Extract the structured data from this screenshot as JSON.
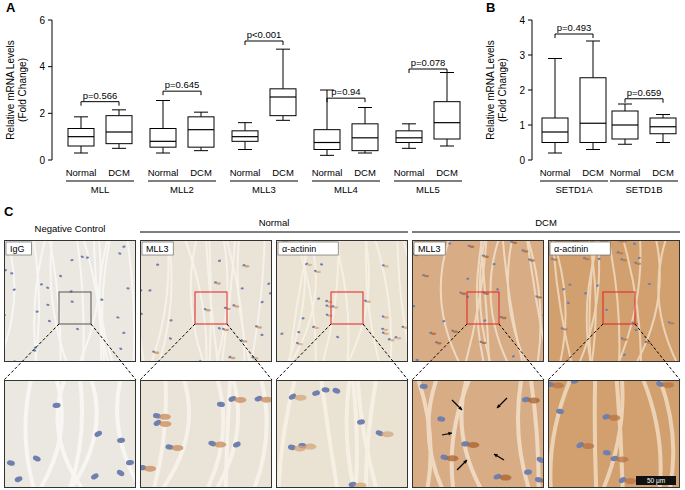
{
  "chart_data": [
    {
      "type": "box",
      "panel_label": "A",
      "y_label_lines": [
        "Relative mRNA Levels",
        "(Fold Change)"
      ],
      "ylim": [
        0,
        6
      ],
      "yticks": [
        0,
        2,
        4,
        6
      ],
      "color": "#000000",
      "groups": [
        {
          "label": "MLL",
          "p_label": "p=0.566",
          "bracket_y": 2.5,
          "boxes": [
            {
              "label": "Normal",
              "min": 0.3,
              "q1": 0.6,
              "median": 1.0,
              "q3": 1.35,
              "max": 1.85
            },
            {
              "label": "DCM",
              "min": 0.5,
              "q1": 0.7,
              "median": 1.2,
              "q3": 1.9,
              "max": 2.15
            }
          ]
        },
        {
          "label": "MLL2",
          "p_label": "p=0.645",
          "bracket_y": 2.95,
          "boxes": [
            {
              "label": "Normal",
              "min": 0.3,
              "q1": 0.55,
              "median": 0.8,
              "q3": 1.35,
              "max": 2.55
            },
            {
              "label": "DCM",
              "min": 0.4,
              "q1": 0.55,
              "median": 1.3,
              "q3": 1.85,
              "max": 2.05
            }
          ]
        },
        {
          "label": "MLL3",
          "p_label": "p<0.001",
          "bracket_y": 5.1,
          "boxes": [
            {
              "label": "Normal",
              "min": 0.45,
              "q1": 0.8,
              "median": 1.0,
              "q3": 1.25,
              "max": 1.6
            },
            {
              "label": "DCM",
              "min": 1.7,
              "q1": 1.9,
              "median": 2.7,
              "q3": 3.05,
              "max": 4.75
            }
          ]
        },
        {
          "label": "MLL4",
          "p_label": "p=0.94",
          "bracket_y": 2.65,
          "boxes": [
            {
              "label": "Normal",
              "min": 0.2,
              "q1": 0.45,
              "median": 0.75,
              "q3": 1.3,
              "max": 3.0
            },
            {
              "label": "DCM",
              "min": 0.3,
              "q1": 0.4,
              "median": 0.95,
              "q3": 1.55,
              "max": 2.25
            }
          ]
        },
        {
          "label": "MLL5",
          "p_label": "p=0.078",
          "bracket_y": 3.9,
          "boxes": [
            {
              "label": "Normal",
              "min": 0.5,
              "q1": 0.75,
              "median": 0.95,
              "q3": 1.25,
              "max": 1.55
            },
            {
              "label": "DCM",
              "min": 0.6,
              "q1": 0.9,
              "median": 1.6,
              "q3": 2.5,
              "max": 3.75
            }
          ]
        }
      ]
    },
    {
      "type": "box",
      "panel_label": "B",
      "y_label_lines": [
        "Relative mRNA Levels",
        "(Fold Change)"
      ],
      "ylim": [
        0,
        4
      ],
      "yticks": [
        0,
        1,
        2,
        3,
        4
      ],
      "color": "#000000",
      "groups": [
        {
          "label": "SETD1A",
          "p_label": "p=0.493",
          "bracket_y": 3.6,
          "boxes": [
            {
              "label": "Normal",
              "min": 0.2,
              "q1": 0.5,
              "median": 0.8,
              "q3": 1.2,
              "max": 2.9
            },
            {
              "label": "DCM",
              "min": 0.3,
              "q1": 0.5,
              "median": 1.05,
              "q3": 2.35,
              "max": 3.4
            }
          ]
        },
        {
          "label": "SETD1B",
          "p_label": "p=0.659",
          "bracket_y": 1.75,
          "boxes": [
            {
              "label": "Normal",
              "min": 0.45,
              "q1": 0.6,
              "median": 1.0,
              "q3": 1.4,
              "max": 1.6
            },
            {
              "label": "DCM",
              "min": 0.5,
              "q1": 0.75,
              "median": 0.95,
              "q3": 1.2,
              "max": 1.3
            }
          ]
        }
      ]
    }
  ],
  "panel_c": {
    "panel_label": "C",
    "negative_header": "Negative Control",
    "normal_header": "Normal",
    "dcm_header": "DCM",
    "tiles": [
      "IgG",
      "MLL3",
      "α-actinin",
      "MLL3",
      "α-actinin"
    ],
    "scale_bar": "50 μm"
  }
}
